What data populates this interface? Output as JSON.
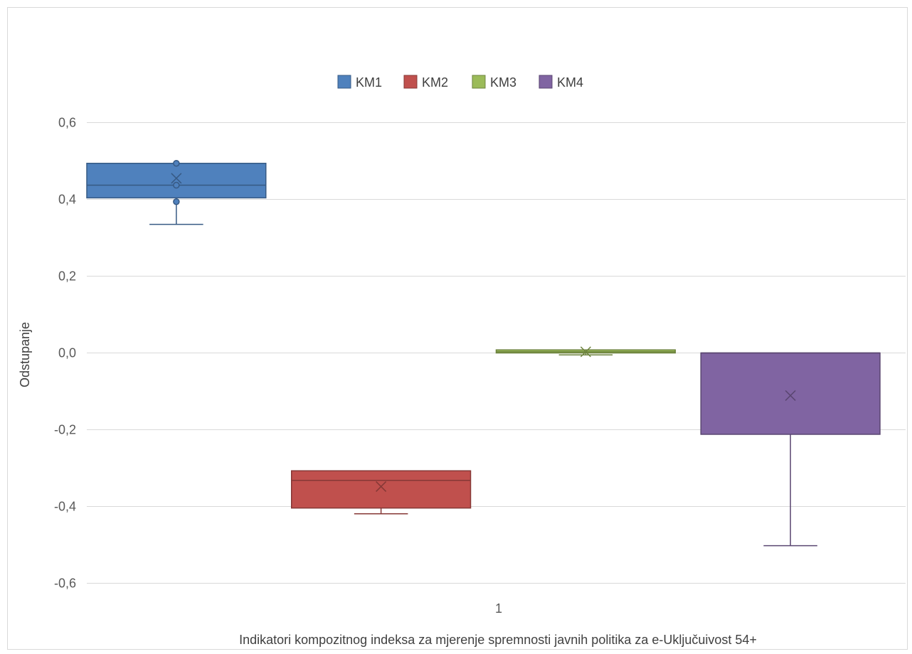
{
  "chart_data": {
    "type": "box",
    "title": "",
    "xlabel": "Indikatori kompozitnog indeksa za mjerenje spremnosti javnih politika za e-Uključuivost 54+",
    "ylabel": "Odstupanje",
    "categories": [
      "1"
    ],
    "ylim": [
      -0.6,
      0.6
    ],
    "yticks": [
      "0,6",
      "0,4",
      "0,2",
      "0,0",
      "-0,2",
      "-0,4",
      "-0,6"
    ],
    "ytick_values": [
      0.6,
      0.4,
      0.2,
      0.0,
      -0.2,
      -0.4,
      -0.6
    ],
    "grid": true,
    "legend": "top-center",
    "series": [
      {
        "name": "KM1",
        "color": "#4F81BD",
        "whisker_low": 0.335,
        "q1": 0.404,
        "median": 0.437,
        "q3": 0.494,
        "whisker_high": 0.494,
        "mean": 0.455,
        "points": [
          0.494,
          0.437,
          0.394
        ]
      },
      {
        "name": "KM2",
        "color": "#C0504D",
        "whisker_low": -0.419,
        "q1": -0.404,
        "median": -0.332,
        "q3": -0.307,
        "whisker_high": -0.307,
        "mean": -0.348,
        "points": []
      },
      {
        "name": "KM3",
        "color": "#9BBB59",
        "whisker_low": -0.005,
        "q1": 0.0,
        "median": 0.003,
        "q3": 0.008,
        "whisker_high": 0.008,
        "mean": 0.003,
        "points": []
      },
      {
        "name": "KM4",
        "color": "#8064A2",
        "whisker_low": -0.502,
        "q1": -0.212,
        "median": 0.0,
        "q3": 0.0,
        "whisker_high": 0.0,
        "mean": -0.111,
        "points": []
      }
    ]
  }
}
